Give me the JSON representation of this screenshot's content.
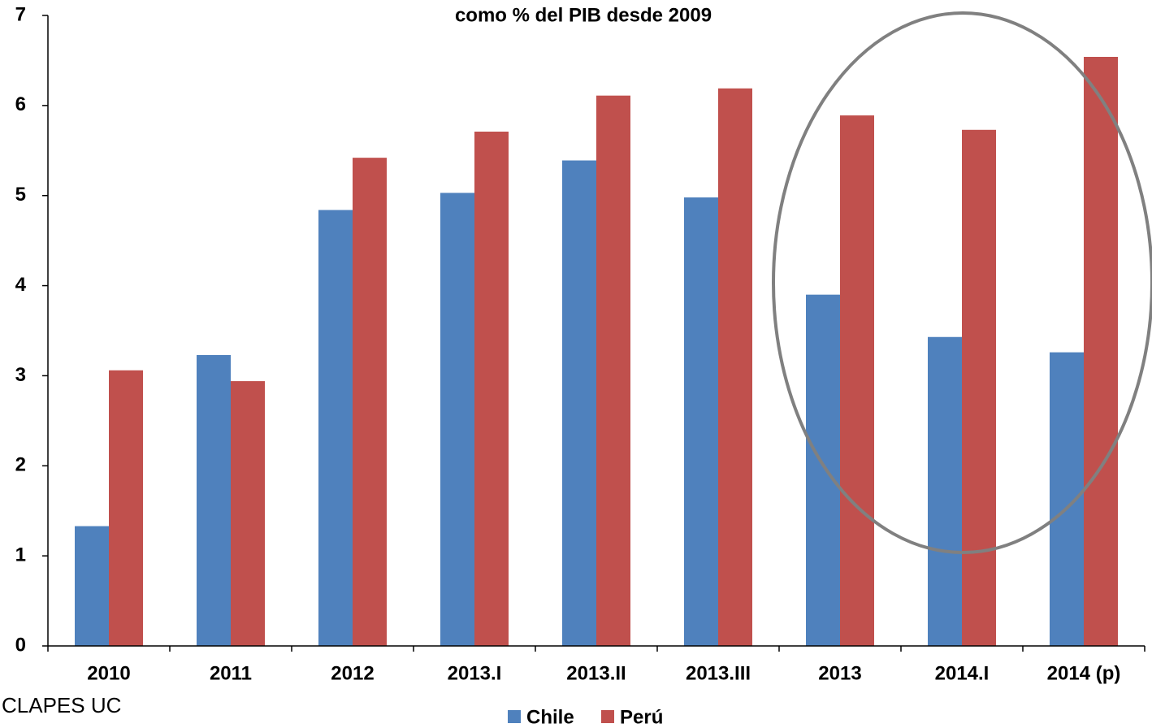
{
  "chart_data": {
    "type": "bar",
    "title": "como % del PIB desde 2009",
    "categories": [
      "2010",
      "2011",
      "2012",
      "2013.I",
      "2013.II",
      "2013.III",
      "2013",
      "2014.I",
      "2014 (p)"
    ],
    "series": [
      {
        "name": "Chile",
        "color": "#4f81bd",
        "values": [
          1.33,
          3.23,
          4.84,
          5.03,
          5.39,
          4.98,
          3.9,
          3.43,
          3.26
        ]
      },
      {
        "name": "Perú",
        "color": "#c0504d",
        "values": [
          3.06,
          2.94,
          5.42,
          5.71,
          6.11,
          6.19,
          5.89,
          5.73,
          6.54
        ]
      }
    ],
    "ylim": [
      0,
      7
    ],
    "yticks": [
      0,
      1,
      2,
      3,
      4,
      5,
      6,
      7
    ],
    "grid": false,
    "source": "CLAPES UC"
  }
}
